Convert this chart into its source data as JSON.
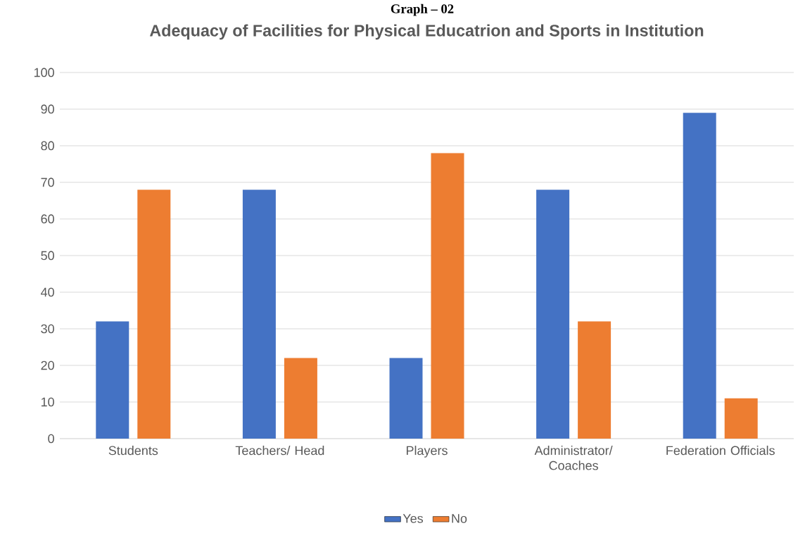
{
  "chart_data": {
    "type": "bar",
    "title": "Adequacy of Facilities for Physical Educatrion and Sports in Institution",
    "annotations": [
      "Graph – 02"
    ],
    "categories": [
      "Students",
      "Teachers/ Head",
      "Players",
      "Administrator/ Coaches",
      "Federation Officials"
    ],
    "series": [
      {
        "name": "Yes",
        "color": "#4472c4",
        "values": [
          32,
          68,
          22,
          68,
          89
        ]
      },
      {
        "name": "No",
        "color": "#ed7d31",
        "values": [
          68,
          22,
          78,
          32,
          11
        ]
      }
    ],
    "ylim": [
      0,
      100
    ],
    "yticks": [
      0,
      10,
      20,
      30,
      40,
      50,
      60,
      70,
      80,
      90,
      100
    ],
    "grid": "y",
    "legend": "bottom"
  }
}
